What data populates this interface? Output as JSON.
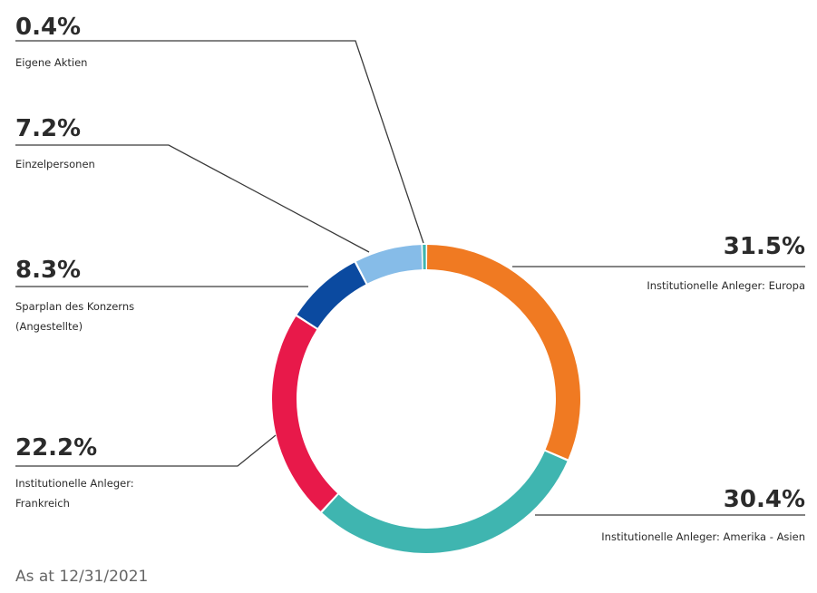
{
  "chart_data": {
    "type": "pie",
    "donut": true,
    "slices": [
      {
        "label": "Institutionelle Anleger: Europa",
        "value": 31.5,
        "display": "31.5%",
        "color": "#f07a22"
      },
      {
        "label": "Institutionelle Anleger: Amerika - Asien",
        "value": 30.4,
        "display": "30.4%",
        "color": "#3fb5b0"
      },
      {
        "label": "Institutionelle Anleger: Frankreich",
        "value": 22.2,
        "display": "22.2%",
        "color": "#e8194a"
      },
      {
        "label": "Sparplan des Konzerns (Angestellte)",
        "value": 8.3,
        "display": "8.3%",
        "color": "#0b4aa0"
      },
      {
        "label": "Einzelpersonen",
        "value": 7.2,
        "display": "7.2%",
        "color": "#86bce8"
      },
      {
        "label": "Eigene Aktien",
        "value": 0.4,
        "display": "0.4%",
        "color": "#3fb5b0"
      }
    ],
    "start": "12 o'clock",
    "direction": "clockwise"
  },
  "footnote": "As at 12/31/2021"
}
